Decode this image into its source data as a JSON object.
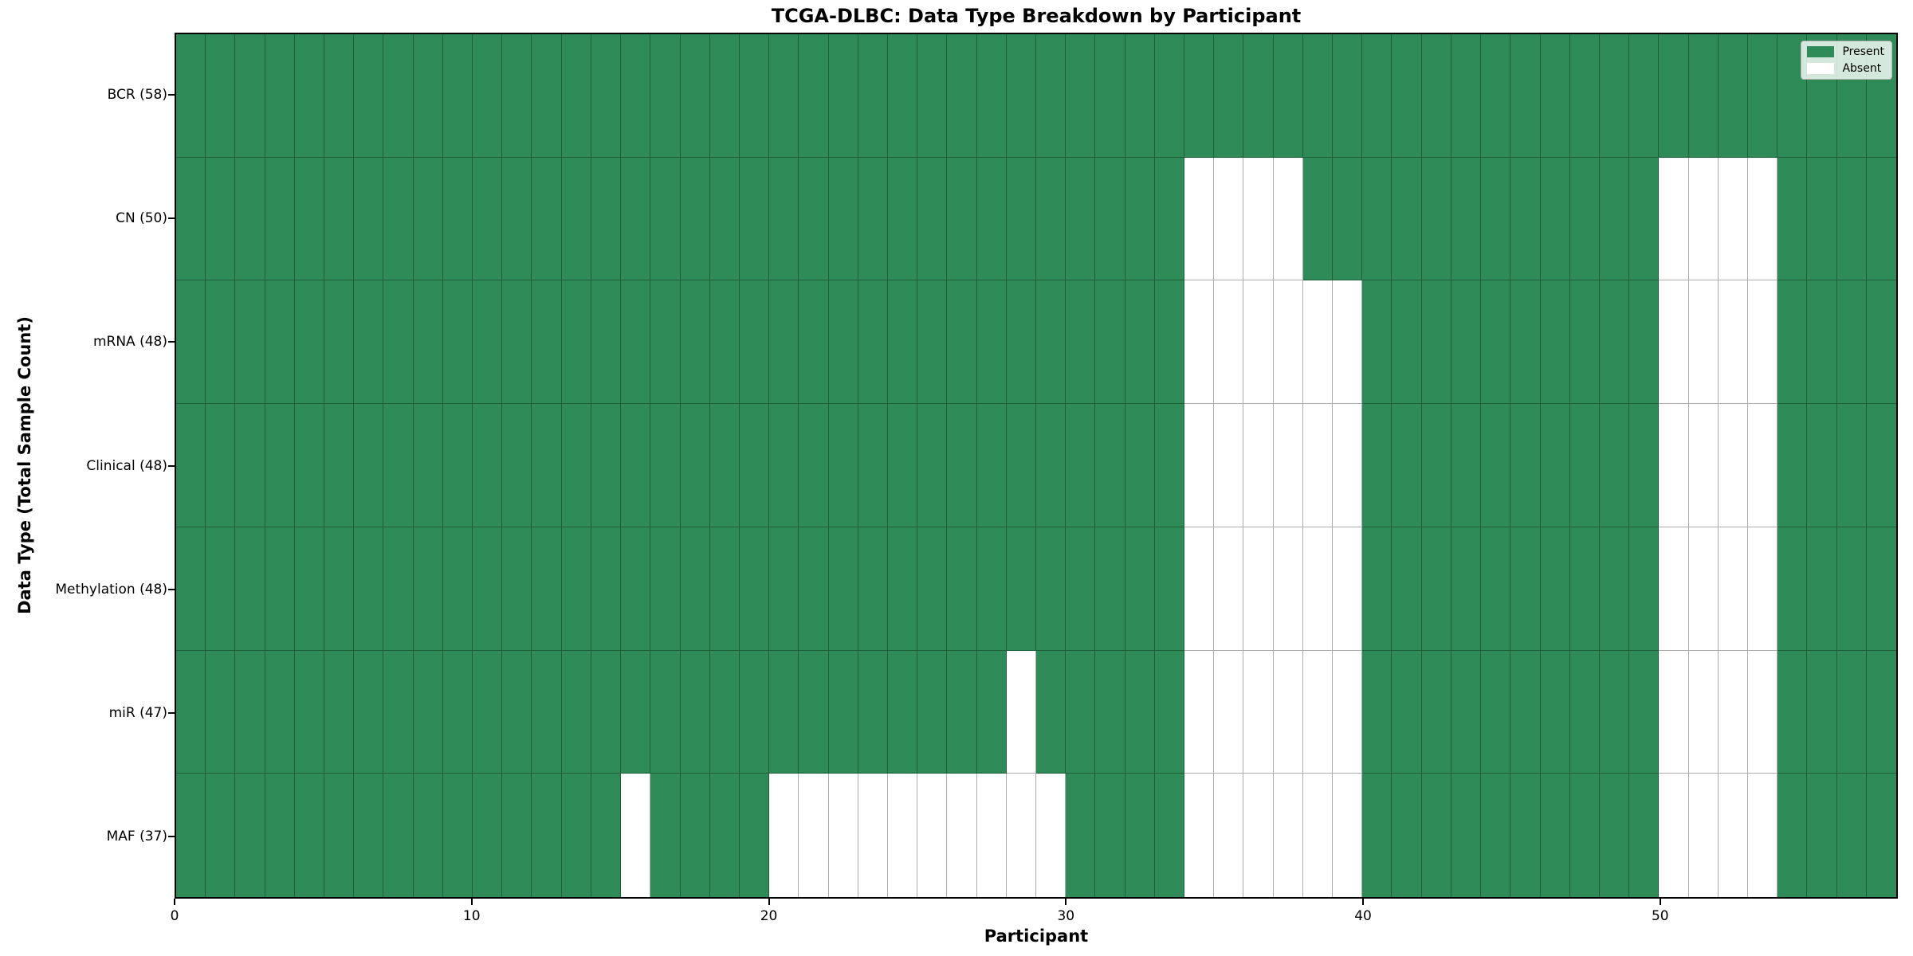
{
  "chart_data": {
    "type": "heatmap",
    "title": "TCGA-DLBC: Data Type Breakdown by Participant",
    "xlabel": "Participant",
    "ylabel": "Data Type (Total Sample Count)",
    "x_ticks": [
      0,
      10,
      20,
      30,
      40,
      50
    ],
    "x_range": [
      0,
      58
    ],
    "n_participants": 58,
    "grid": true,
    "present_color": "#2e8b57",
    "absent_color": "#ffffff",
    "legend": {
      "position": "upper right",
      "entries": [
        {
          "label": "Present",
          "color": "#2e8b57"
        },
        {
          "label": "Absent",
          "color": "#ffffff"
        }
      ]
    },
    "rows": [
      {
        "label": "BCR (58)",
        "data_type": "BCR",
        "total": 58,
        "absent_participants": []
      },
      {
        "label": "CN (50)",
        "data_type": "CN",
        "total": 50,
        "absent_participants": [
          34,
          35,
          36,
          37,
          50,
          51,
          52,
          53
        ]
      },
      {
        "label": "mRNA (48)",
        "data_type": "mRNA",
        "total": 48,
        "absent_participants": [
          34,
          35,
          36,
          37,
          38,
          39,
          50,
          51,
          52,
          53
        ]
      },
      {
        "label": "Clinical (48)",
        "data_type": "Clinical",
        "total": 48,
        "absent_participants": [
          34,
          35,
          36,
          37,
          38,
          39,
          50,
          51,
          52,
          53
        ]
      },
      {
        "label": "Methylation (48)",
        "data_type": "Methylation",
        "total": 48,
        "absent_participants": [
          34,
          35,
          36,
          37,
          38,
          39,
          50,
          51,
          52,
          53
        ]
      },
      {
        "label": "miR (47)",
        "data_type": "miR",
        "total": 47,
        "absent_participants": [
          28,
          34,
          35,
          36,
          37,
          38,
          39,
          50,
          51,
          52,
          53
        ]
      },
      {
        "label": "MAF (37)",
        "data_type": "MAF",
        "total": 37,
        "absent_participants": [
          15,
          20,
          21,
          22,
          23,
          24,
          25,
          26,
          27,
          28,
          29,
          34,
          35,
          36,
          37,
          38,
          39,
          50,
          51,
          52,
          53
        ]
      }
    ]
  }
}
